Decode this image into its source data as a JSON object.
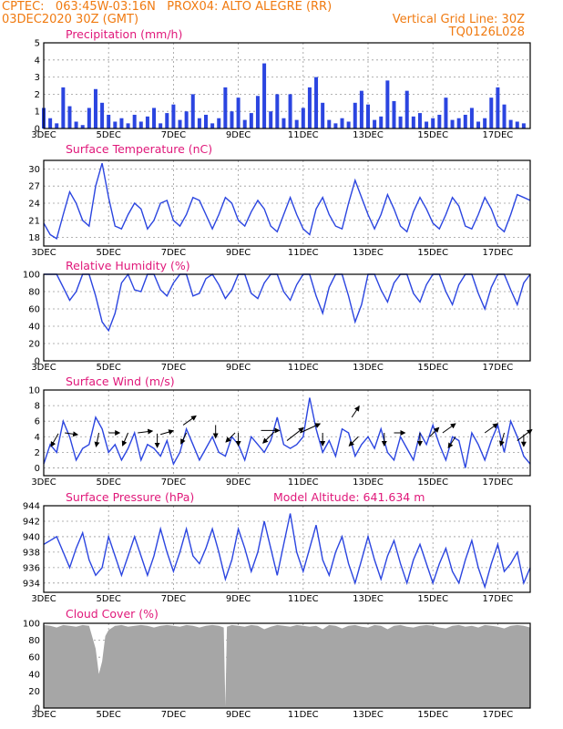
{
  "header": {
    "line1_left": "CPTEC:   063:45W-03:16N   PROX04: ALTO ALEGRE (RR)",
    "line2_left": "03DEC2020 30Z (GMT)",
    "line2_right": "Vertical Grid Line: 30Z",
    "line3_right": "TQ0126L028"
  },
  "colors": {
    "header": "#f07a10",
    "title": "#e0187a",
    "series": "#2b45e0",
    "cloud": "#a6a6a6",
    "grid": "#9a9a9a"
  },
  "x_labels": [
    "3DEC",
    "5DEC",
    "7DEC",
    "9DEC",
    "11DEC",
    "13DEC",
    "15DEC",
    "17DEC"
  ],
  "chart_data": [
    {
      "type": "bar",
      "title": "Precipitation (mm/h)",
      "ylim": [
        0,
        5
      ],
      "yticks": [
        0,
        1,
        2,
        3,
        4,
        5
      ],
      "x": [
        3.0,
        3.2,
        3.4,
        3.6,
        3.8,
        4.0,
        4.2,
        4.4,
        4.6,
        4.8,
        5.0,
        5.2,
        5.4,
        5.6,
        5.8,
        6.0,
        6.2,
        6.4,
        6.6,
        6.8,
        7.0,
        7.2,
        7.4,
        7.6,
        7.8,
        8.0,
        8.2,
        8.4,
        8.6,
        8.8,
        9.0,
        9.2,
        9.4,
        9.6,
        9.8,
        10.0,
        10.2,
        10.4,
        10.6,
        10.8,
        11.0,
        11.2,
        11.4,
        11.6,
        11.8,
        12.0,
        12.2,
        12.4,
        12.6,
        12.8,
        13.0,
        13.2,
        13.4,
        13.6,
        13.8,
        14.0,
        14.2,
        14.4,
        14.6,
        14.8,
        15.0,
        15.2,
        15.4,
        15.6,
        15.8,
        16.0,
        16.2,
        16.4,
        16.6,
        16.8,
        17.0,
        17.2,
        17.4,
        17.6,
        17.8
      ],
      "values": [
        1.2,
        0.6,
        0.3,
        2.4,
        1.3,
        0.4,
        0.2,
        1.2,
        2.3,
        1.5,
        0.8,
        0.4,
        0.6,
        0.3,
        0.8,
        0.4,
        0.7,
        1.2,
        0.3,
        0.9,
        1.4,
        0.5,
        1.0,
        2.0,
        0.6,
        0.8,
        0.3,
        0.6,
        2.4,
        1.0,
        1.8,
        0.5,
        0.9,
        1.9,
        3.8,
        1.0,
        2.0,
        0.6,
        2.0,
        0.5,
        1.2,
        2.4,
        3.0,
        1.5,
        0.5,
        0.3,
        0.6,
        0.4,
        1.5,
        2.2,
        1.4,
        0.5,
        0.7,
        2.8,
        1.6,
        0.7,
        2.2,
        0.7,
        0.9,
        0.4,
        0.6,
        0.8,
        1.8,
        0.5,
        0.6,
        0.8,
        1.2,
        0.4,
        0.6,
        1.8,
        2.4,
        1.4,
        0.5,
        0.4,
        0.3
      ]
    },
    {
      "type": "line",
      "title": "Surface Temperature (nC)",
      "ylim": [
        16.5,
        31.5
      ],
      "yticks": [
        18,
        21,
        24,
        27,
        30
      ],
      "x": [
        3.0,
        3.2,
        3.4,
        3.6,
        3.8,
        4.0,
        4.2,
        4.4,
        4.6,
        4.8,
        5.0,
        5.2,
        5.4,
        5.6,
        5.8,
        6.0,
        6.2,
        6.4,
        6.6,
        6.8,
        7.0,
        7.2,
        7.4,
        7.6,
        7.8,
        8.0,
        8.2,
        8.4,
        8.6,
        8.8,
        9.0,
        9.2,
        9.4,
        9.6,
        9.8,
        10.0,
        10.2,
        10.4,
        10.6,
        10.8,
        11.0,
        11.2,
        11.4,
        11.6,
        11.8,
        12.0,
        12.2,
        12.4,
        12.6,
        12.8,
        13.0,
        13.2,
        13.4,
        13.6,
        13.8,
        14.0,
        14.2,
        14.4,
        14.6,
        14.8,
        15.0,
        15.2,
        15.4,
        15.6,
        15.8,
        16.0,
        16.2,
        16.4,
        16.6,
        16.8,
        17.0,
        17.2,
        17.4,
        17.6,
        17.8,
        18.0
      ],
      "values": [
        20.5,
        18.5,
        17.8,
        22.0,
        26.0,
        24.0,
        21.0,
        20.0,
        27.0,
        31.0,
        25.0,
        20.0,
        19.5,
        22.0,
        24.0,
        23.0,
        19.5,
        21.0,
        24.0,
        24.5,
        21.0,
        20.0,
        22.0,
        25.0,
        24.5,
        22.0,
        19.5,
        22.0,
        25.0,
        24.0,
        21.0,
        20.0,
        22.5,
        24.5,
        23.0,
        20.0,
        19.0,
        22.0,
        25.0,
        22.0,
        19.5,
        18.5,
        23.0,
        25.0,
        22.0,
        20.0,
        19.5,
        24.0,
        28.0,
        25.0,
        22.0,
        19.5,
        22.0,
        25.5,
        23.0,
        20.0,
        19.0,
        22.5,
        25.0,
        23.0,
        20.5,
        19.5,
        22.0,
        25.0,
        23.5,
        20.0,
        19.5,
        22.0,
        25.0,
        23.0,
        20.0,
        19.0,
        22.0,
        25.5,
        25.0,
        24.5
      ]
    },
    {
      "type": "line",
      "title": "Relative Humidity (%)",
      "ylim": [
        0,
        100
      ],
      "yticks": [
        0,
        20,
        40,
        60,
        80,
        100
      ],
      "x": [
        3.0,
        3.2,
        3.4,
        3.6,
        3.8,
        4.0,
        4.2,
        4.4,
        4.6,
        4.8,
        5.0,
        5.2,
        5.4,
        5.6,
        5.8,
        6.0,
        6.2,
        6.4,
        6.6,
        6.8,
        7.0,
        7.2,
        7.4,
        7.6,
        7.8,
        8.0,
        8.2,
        8.4,
        8.6,
        8.8,
        9.0,
        9.2,
        9.4,
        9.6,
        9.8,
        10.0,
        10.2,
        10.4,
        10.6,
        10.8,
        11.0,
        11.2,
        11.4,
        11.6,
        11.8,
        12.0,
        12.2,
        12.4,
        12.6,
        12.8,
        13.0,
        13.2,
        13.4,
        13.6,
        13.8,
        14.0,
        14.2,
        14.4,
        14.6,
        14.8,
        15.0,
        15.2,
        15.4,
        15.6,
        15.8,
        16.0,
        16.2,
        16.4,
        16.6,
        16.8,
        17.0,
        17.2,
        17.4,
        17.6,
        17.8,
        18.0
      ],
      "values": [
        100,
        100,
        100,
        85,
        70,
        80,
        100,
        100,
        75,
        45,
        35,
        55,
        90,
        100,
        82,
        80,
        100,
        100,
        82,
        75,
        90,
        100,
        100,
        75,
        78,
        95,
        100,
        88,
        72,
        82,
        100,
        100,
        78,
        72,
        90,
        100,
        100,
        80,
        70,
        88,
        100,
        100,
        75,
        55,
        85,
        100,
        100,
        75,
        45,
        65,
        100,
        100,
        82,
        68,
        90,
        100,
        100,
        78,
        68,
        88,
        100,
        100,
        80,
        65,
        88,
        100,
        100,
        78,
        60,
        85,
        100,
        100,
        82,
        65,
        90,
        100
      ]
    },
    {
      "type": "line",
      "title": "Surface Wind (m/s)",
      "ylim": [
        -1,
        10
      ],
      "yticks": [
        0,
        2,
        4,
        6,
        8,
        10
      ],
      "x": [
        3.0,
        3.2,
        3.4,
        3.6,
        3.8,
        4.0,
        4.2,
        4.4,
        4.6,
        4.8,
        5.0,
        5.2,
        5.4,
        5.6,
        5.8,
        6.0,
        6.2,
        6.4,
        6.6,
        6.8,
        7.0,
        7.2,
        7.4,
        7.6,
        7.8,
        8.0,
        8.2,
        8.4,
        8.6,
        8.8,
        9.0,
        9.2,
        9.4,
        9.6,
        9.8,
        10.0,
        10.2,
        10.4,
        10.6,
        10.8,
        11.0,
        11.2,
        11.4,
        11.6,
        11.8,
        12.0,
        12.2,
        12.4,
        12.6,
        12.8,
        13.0,
        13.2,
        13.4,
        13.6,
        13.8,
        14.0,
        14.2,
        14.4,
        14.6,
        14.8,
        15.0,
        15.2,
        15.4,
        15.6,
        15.8,
        16.0,
        16.2,
        16.4,
        16.6,
        16.8,
        17.0,
        17.2,
        17.4,
        17.6,
        17.8,
        18.0
      ],
      "values": [
        0.5,
        3.0,
        2.0,
        6.0,
        4.0,
        1.0,
        2.5,
        3.0,
        6.5,
        5.0,
        2.0,
        3.0,
        1.0,
        2.5,
        4.5,
        1.0,
        3.0,
        2.5,
        1.5,
        3.5,
        0.5,
        2.0,
        5.0,
        3.0,
        1.0,
        2.5,
        4.0,
        2.0,
        1.5,
        4.0,
        3.0,
        1.0,
        4.0,
        3.0,
        2.0,
        3.5,
        6.5,
        3.0,
        2.5,
        3.0,
        4.0,
        9.0,
        5.0,
        2.0,
        3.5,
        1.5,
        5.0,
        4.5,
        1.5,
        3.0,
        4.0,
        2.5,
        5.0,
        2.0,
        1.0,
        4.0,
        2.5,
        1.0,
        4.5,
        3.0,
        5.5,
        3.0,
        1.0,
        4.0,
        3.5,
        0.0,
        4.5,
        3.0,
        1.0,
        3.5,
        5.5,
        2.0,
        6.0,
        4.0,
        1.5,
        0.5
      ],
      "arrows": [
        {
          "x": 3.45,
          "y": 4.4,
          "dx": -8,
          "dy": 14
        },
        {
          "x": 3.65,
          "y": 4.5,
          "dx": 14,
          "dy": 2
        },
        {
          "x": 4.7,
          "y": 4.5,
          "dx": -3,
          "dy": 15
        },
        {
          "x": 5.0,
          "y": 4.5,
          "dx": 12,
          "dy": 0
        },
        {
          "x": 5.6,
          "y": 4.5,
          "dx": -6,
          "dy": 14
        },
        {
          "x": 5.9,
          "y": 4.5,
          "dx": 16,
          "dy": -2
        },
        {
          "x": 6.5,
          "y": 4.4,
          "dx": 0,
          "dy": 15
        },
        {
          "x": 6.6,
          "y": 4.3,
          "dx": 14,
          "dy": -4
        },
        {
          "x": 7.3,
          "y": 5.5,
          "dx": 14,
          "dy": -10
        },
        {
          "x": 7.4,
          "y": 4.5,
          "dx": -6,
          "dy": 12
        },
        {
          "x": 8.3,
          "y": 5.5,
          "dx": 0,
          "dy": 14
        },
        {
          "x": 8.9,
          "y": 4.5,
          "dx": -10,
          "dy": 10
        },
        {
          "x": 9.0,
          "y": 4.5,
          "dx": 0,
          "dy": 14
        },
        {
          "x": 9.7,
          "y": 4.8,
          "dx": 20,
          "dy": 0
        },
        {
          "x": 10.1,
          "y": 4.6,
          "dx": -12,
          "dy": 12
        },
        {
          "x": 10.5,
          "y": 3.5,
          "dx": 18,
          "dy": -14
        },
        {
          "x": 10.9,
          "y": 4.5,
          "dx": 22,
          "dy": -10
        },
        {
          "x": 11.6,
          "y": 4.5,
          "dx": 0,
          "dy": 14
        },
        {
          "x": 12.5,
          "y": 6.5,
          "dx": 8,
          "dy": -12
        },
        {
          "x": 12.7,
          "y": 4.0,
          "dx": -10,
          "dy": 10
        },
        {
          "x": 13.5,
          "y": 4.5,
          "dx": 0,
          "dy": 14
        },
        {
          "x": 13.8,
          "y": 4.5,
          "dx": 12,
          "dy": 0
        },
        {
          "x": 14.6,
          "y": 4.5,
          "dx": 0,
          "dy": 14
        },
        {
          "x": 14.9,
          "y": 4.0,
          "dx": 10,
          "dy": -10
        },
        {
          "x": 15.3,
          "y": 4.5,
          "dx": 14,
          "dy": -10
        },
        {
          "x": 15.7,
          "y": 4.0,
          "dx": -8,
          "dy": 12
        },
        {
          "x": 16.6,
          "y": 4.5,
          "dx": 14,
          "dy": -10
        },
        {
          "x": 17.2,
          "y": 4.5,
          "dx": -4,
          "dy": 14
        },
        {
          "x": 17.6,
          "y": 3.5,
          "dx": 16,
          "dy": -12
        },
        {
          "x": 17.8,
          "y": 4.3,
          "dx": 0,
          "dy": 13
        }
      ]
    },
    {
      "type": "line",
      "title": "Surface Pressure (hPa)",
      "extra_label": "Model Altitude: 641.634 m",
      "ylim": [
        932.8,
        944
      ],
      "yticks": [
        934,
        936,
        938,
        940,
        942,
        944
      ],
      "x": [
        3.0,
        3.2,
        3.4,
        3.6,
        3.8,
        4.0,
        4.2,
        4.4,
        4.6,
        4.8,
        5.0,
        5.2,
        5.4,
        5.6,
        5.8,
        6.0,
        6.2,
        6.4,
        6.6,
        6.8,
        7.0,
        7.2,
        7.4,
        7.6,
        7.8,
        8.0,
        8.2,
        8.4,
        8.6,
        8.8,
        9.0,
        9.2,
        9.4,
        9.6,
        9.8,
        10.0,
        10.2,
        10.4,
        10.6,
        10.8,
        11.0,
        11.2,
        11.4,
        11.6,
        11.8,
        12.0,
        12.2,
        12.4,
        12.6,
        12.8,
        13.0,
        13.2,
        13.4,
        13.6,
        13.8,
        14.0,
        14.2,
        14.4,
        14.6,
        14.8,
        15.0,
        15.2,
        15.4,
        15.6,
        15.8,
        16.0,
        16.2,
        16.4,
        16.6,
        16.8,
        17.0,
        17.2,
        17.4,
        17.6,
        17.8,
        18.0
      ],
      "values": [
        939.0,
        939.5,
        940.0,
        938.0,
        936.0,
        938.5,
        940.5,
        937.0,
        935.0,
        936.0,
        940.0,
        937.5,
        935.0,
        937.5,
        940.0,
        937.5,
        935.0,
        937.5,
        941.0,
        938.0,
        935.5,
        938.0,
        941.0,
        937.5,
        936.5,
        938.5,
        941.0,
        938.0,
        934.5,
        937.0,
        941.0,
        938.5,
        935.5,
        938.0,
        942.0,
        938.5,
        935.0,
        939.0,
        943.0,
        938.0,
        935.5,
        938.5,
        941.5,
        937.0,
        935.0,
        938.0,
        940.0,
        936.5,
        934.0,
        937.0,
        940.0,
        937.0,
        934.5,
        937.5,
        939.5,
        936.5,
        934.0,
        937.0,
        939.0,
        936.5,
        934.0,
        936.5,
        938.5,
        935.5,
        934.0,
        937.0,
        939.5,
        936.0,
        933.5,
        936.5,
        939.0,
        935.5,
        936.5,
        938.0,
        934.0,
        936.0
      ]
    },
    {
      "type": "area",
      "title": "Cloud Cover (%)",
      "ylim": [
        0,
        100
      ],
      "yticks": [
        0,
        20,
        40,
        60,
        80,
        100
      ],
      "x": [
        3.0,
        3.2,
        3.4,
        3.6,
        3.8,
        4.0,
        4.2,
        4.4,
        4.6,
        4.7,
        4.8,
        4.9,
        5.0,
        5.2,
        5.4,
        5.6,
        5.8,
        6.0,
        6.2,
        6.4,
        6.6,
        6.8,
        7.0,
        7.2,
        7.4,
        7.6,
        7.8,
        8.0,
        8.2,
        8.4,
        8.55,
        8.6,
        8.65,
        8.8,
        9.0,
        9.2,
        9.4,
        9.6,
        9.8,
        10.0,
        10.2,
        10.4,
        10.6,
        10.8,
        11.0,
        11.2,
        11.4,
        11.6,
        11.8,
        12.0,
        12.2,
        12.4,
        12.6,
        12.8,
        13.0,
        13.2,
        13.4,
        13.6,
        13.8,
        14.0,
        14.2,
        14.4,
        14.6,
        14.8,
        15.0,
        15.2,
        15.4,
        15.6,
        15.8,
        16.0,
        16.2,
        16.4,
        16.6,
        16.8,
        17.0,
        17.2,
        17.4,
        17.6,
        17.8,
        18.0
      ],
      "values": [
        98,
        97,
        95,
        98,
        97,
        96,
        98,
        97,
        70,
        40,
        55,
        85,
        92,
        97,
        98,
        96,
        97,
        98,
        97,
        95,
        97,
        98,
        97,
        96,
        98,
        97,
        95,
        97,
        98,
        97,
        95,
        2,
        96,
        98,
        97,
        96,
        98,
        97,
        93,
        96,
        98,
        97,
        96,
        98,
        97,
        96,
        97,
        93,
        98,
        97,
        94,
        97,
        98,
        96,
        95,
        98,
        97,
        93,
        97,
        98,
        96,
        95,
        97,
        98,
        97,
        95,
        94,
        97,
        98,
        96,
        97,
        95,
        98,
        97,
        96,
        94,
        97,
        98,
        97,
        95
      ]
    }
  ]
}
